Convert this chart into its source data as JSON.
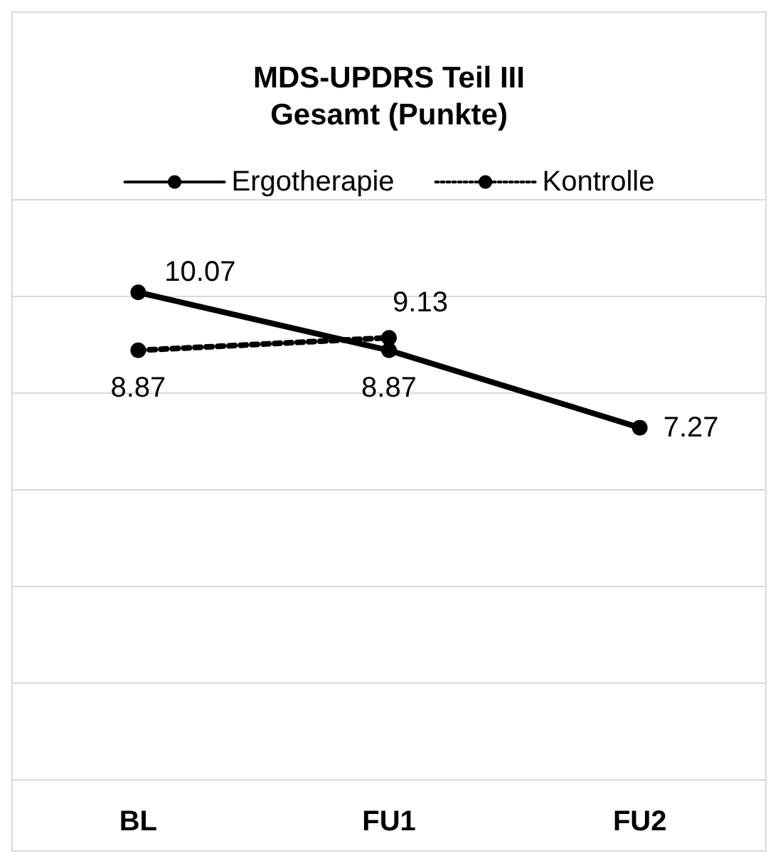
{
  "chart_data": {
    "type": "line",
    "title": "MDS-UPDRS Teil III\nGesamt (Punkte)",
    "categories": [
      "BL",
      "FU1",
      "FU2"
    ],
    "series": [
      {
        "name": "Ergotherapie",
        "color": "#000000",
        "line_style": "solid",
        "values": [
          10.07,
          8.87,
          7.27
        ]
      },
      {
        "name": "Kontrolle",
        "color": "#000000",
        "line_style": "dotted",
        "values": [
          8.87,
          9.13,
          null
        ]
      }
    ],
    "ylim": [
      0,
      12
    ],
    "yticks": [
      {
        "value": 0,
        "label": null
      },
      {
        "value": 2,
        "label": null
      },
      {
        "value": 4,
        "label": null
      },
      {
        "value": 6,
        "label": null
      },
      {
        "value": 8,
        "label": null
      },
      {
        "value": 10,
        "label": null
      },
      {
        "value": 12,
        "label": null
      }
    ],
    "tick_labels": "x",
    "grid": "y",
    "legend": "top",
    "marker": "circle",
    "data_labels": true
  }
}
